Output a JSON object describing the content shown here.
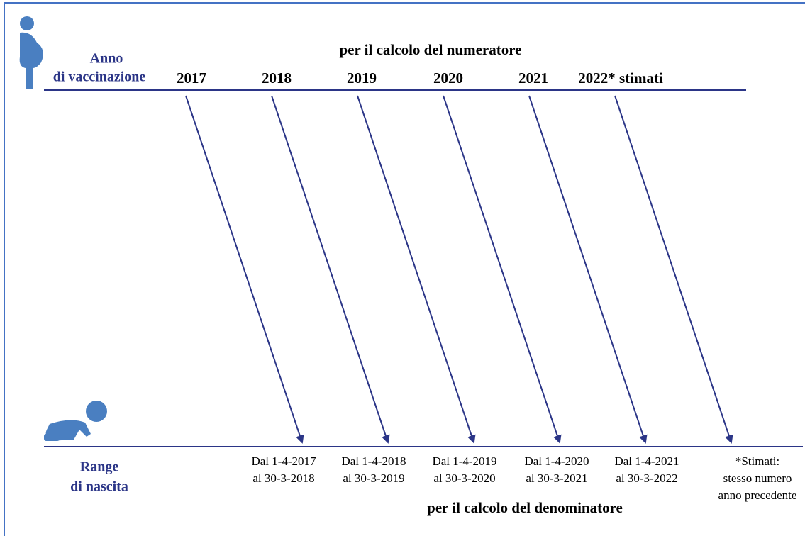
{
  "header": {
    "row_label": [
      "Anno",
      "di vaccinazione"
    ],
    "title": "per il calcolo del numeratore",
    "years": [
      "2017",
      "2018",
      "2019",
      "2020",
      "2021",
      "2022* stimati"
    ]
  },
  "footer": {
    "row_label": [
      "Range",
      "di nascita"
    ],
    "ranges": [
      [
        "Dal 1-4-2017",
        "al 30-3-2018"
      ],
      [
        "Dal 1-4-2018",
        "al 30-3-2019"
      ],
      [
        "Dal 1-4-2019",
        "al 30-3-2020"
      ],
      [
        "Dal 1-4-2020",
        "al 30-3-2021"
      ],
      [
        "Dal 1-4-2021",
        "al 30-3-2022"
      ]
    ],
    "note": [
      "*Stimati:",
      "stesso numero",
      "anno precedente"
    ],
    "title": "per il calcolo del denominatore"
  }
}
